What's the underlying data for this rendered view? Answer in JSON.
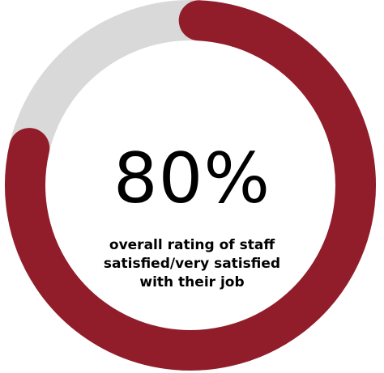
{
  "chart_data": {
    "type": "pie",
    "variant": "donut",
    "value_percent": 80,
    "value_label": "80%",
    "caption": "overall rating of staff satisfied/very satisfied with their job",
    "colors": {
      "filled": "#921d2a",
      "remaining": "#d9d9d9"
    }
  }
}
